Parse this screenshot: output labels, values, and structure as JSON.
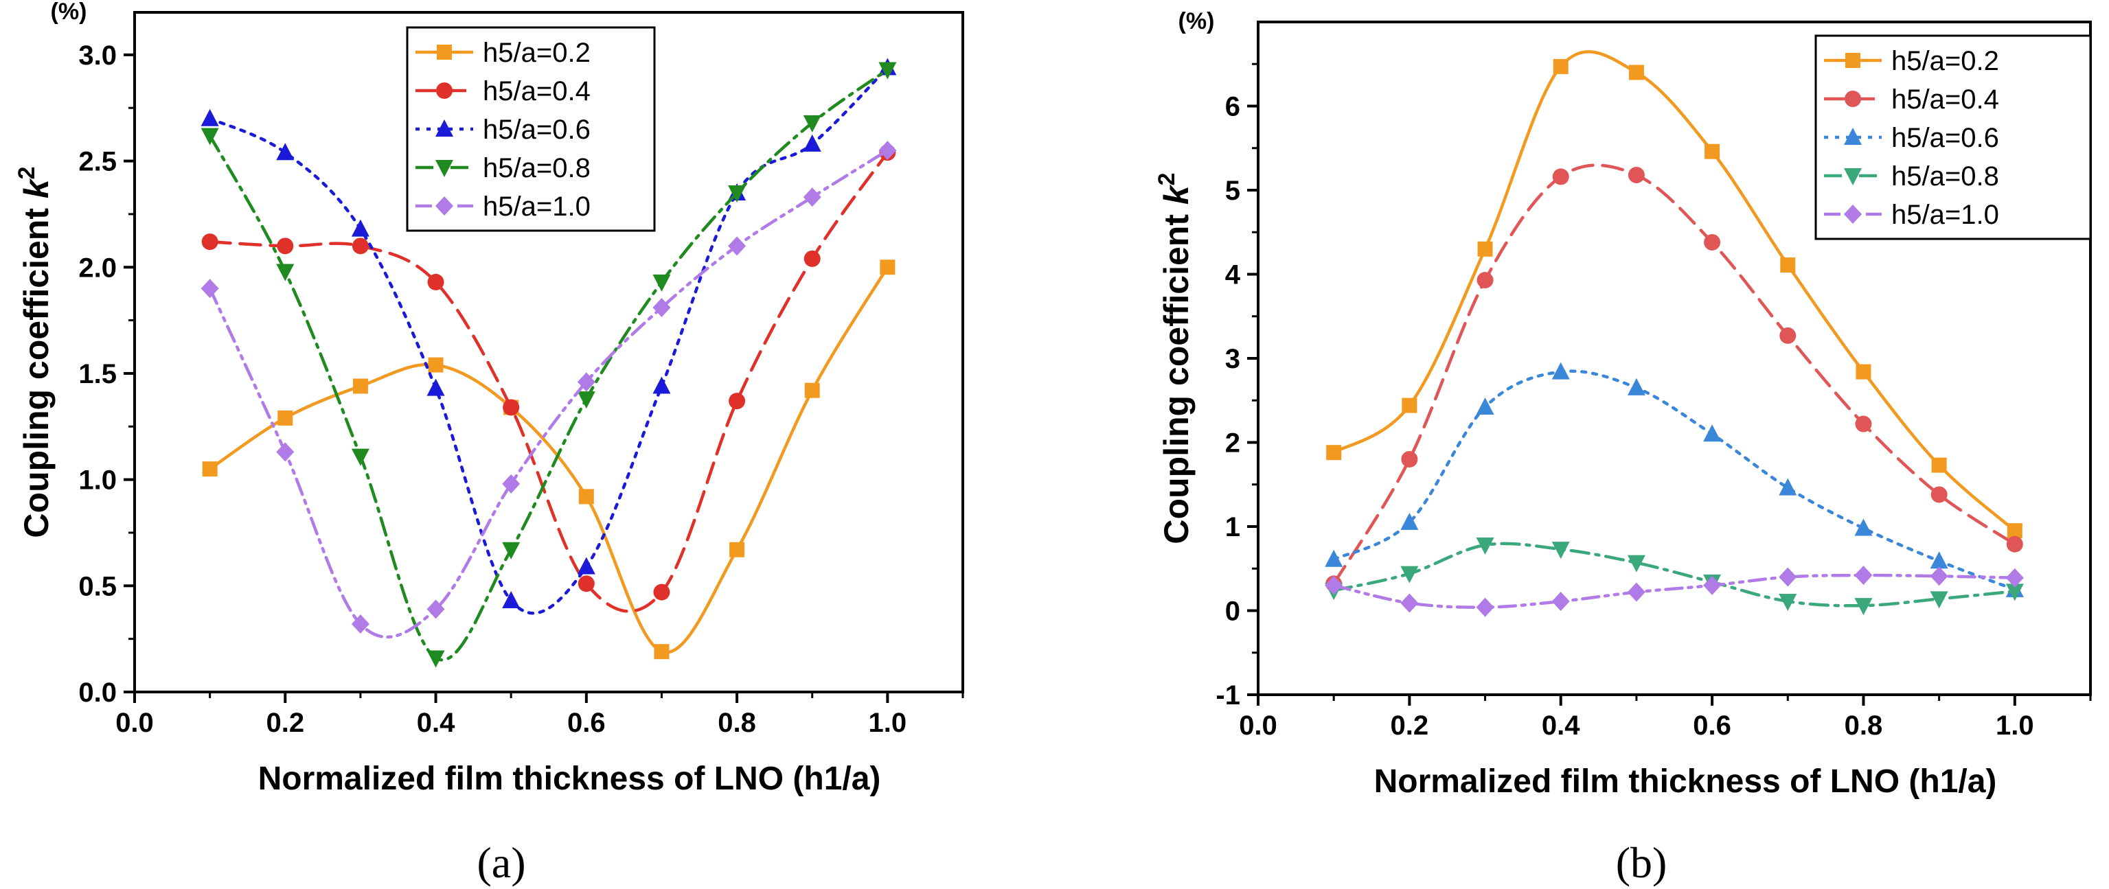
{
  "colors": {
    "h5/a=0.2": "#f29a1f",
    "h5/a=0.4": "#e0302a",
    "h5/a=0.6": "#1a1ad8",
    "h5/a=0.8": "#1f8a1f",
    "h5/a=1.0": "#b07be6",
    "h5/a=0.4 (b)": "#e05555",
    "h5/a=0.6 (b)": "#3a86d8",
    "h5/a=0.8 (b)": "#3aa87a"
  },
  "chart_data": [
    {
      "type": "line",
      "panel_label": "(a)",
      "unit_label": "(%)",
      "xlabel": "Normalized film thickness of LNO (h1/a)",
      "ylabel": "Coupling coefficient ",
      "ylabel_symbol": "k",
      "ylabel_sup": "2",
      "xlim": [
        0.0,
        1.1
      ],
      "ylim": [
        0.0,
        3.2
      ],
      "xticks": [
        "0.0",
        "0.2",
        "0.4",
        "0.6",
        "0.8",
        "1.0"
      ],
      "yticks": [
        "0.0",
        "0.5",
        "1.0",
        "1.5",
        "2.0",
        "2.5",
        "3.0"
      ],
      "legend_position": "top-right",
      "x": [
        0.1,
        0.2,
        0.3,
        0.4,
        0.5,
        0.6,
        0.7,
        0.8,
        0.9,
        1.0
      ],
      "series": [
        {
          "name": "h5/a=0.2",
          "color": "#f29a1f",
          "marker": "square",
          "dash": "solid",
          "values": [
            1.05,
            1.29,
            1.44,
            1.54,
            1.34,
            0.92,
            0.19,
            0.67,
            1.42,
            2.0
          ]
        },
        {
          "name": "h5/a=0.4",
          "color": "#e0302a",
          "marker": "circle",
          "dash": "dash",
          "values": [
            2.12,
            2.1,
            2.1,
            1.93,
            1.34,
            0.51,
            0.47,
            1.37,
            2.04,
            2.54
          ]
        },
        {
          "name": "h5/a=0.6",
          "color": "#1a1ad8",
          "marker": "triangle-up",
          "dash": "dot",
          "values": [
            2.7,
            2.54,
            2.18,
            1.43,
            0.43,
            0.59,
            1.44,
            2.35,
            2.58,
            2.94
          ]
        },
        {
          "name": "h5/a=0.8",
          "color": "#1f8a1f",
          "marker": "triangle-down",
          "dash": "dashdot",
          "values": [
            2.62,
            1.98,
            1.11,
            0.16,
            0.67,
            1.38,
            1.93,
            2.35,
            2.68,
            2.93
          ]
        },
        {
          "name": "h5/a=1.0",
          "color": "#b07be6",
          "marker": "diamond",
          "dash": "dashdotdot",
          "values": [
            1.9,
            1.13,
            0.32,
            0.39,
            0.98,
            1.46,
            1.81,
            2.1,
            2.33,
            2.55
          ]
        }
      ]
    },
    {
      "type": "line",
      "panel_label": "(b)",
      "unit_label": "(%)",
      "xlabel": "Normalized film thickness of LNO (h1/a)",
      "ylabel": "Coupling coefficient ",
      "ylabel_symbol": "k",
      "ylabel_sup": "2",
      "xlim": [
        0.0,
        1.1
      ],
      "ylim": [
        -1,
        7
      ],
      "xticks": [
        "0.0",
        "0.2",
        "0.4",
        "0.6",
        "0.8",
        "1.0"
      ],
      "yticks": [
        "-1",
        "0",
        "1",
        "2",
        "3",
        "4",
        "5",
        "6"
      ],
      "legend_position": "top-right",
      "x": [
        0.1,
        0.2,
        0.3,
        0.4,
        0.5,
        0.6,
        0.7,
        0.8,
        0.9,
        1.0
      ],
      "series": [
        {
          "name": "h5/a=0.2",
          "color": "#f29a1f",
          "marker": "square",
          "dash": "solid",
          "values": [
            1.88,
            2.44,
            4.3,
            6.47,
            6.4,
            5.46,
            4.11,
            2.84,
            1.73,
            0.95
          ]
        },
        {
          "name": "h5/a=0.4",
          "color": "#e05555",
          "marker": "circle",
          "dash": "dash",
          "values": [
            0.32,
            1.8,
            3.93,
            5.16,
            5.18,
            4.38,
            3.27,
            2.22,
            1.38,
            0.79
          ]
        },
        {
          "name": "h5/a=0.6",
          "color": "#3a86d8",
          "marker": "triangle-up",
          "dash": "dot",
          "values": [
            0.61,
            1.05,
            2.42,
            2.84,
            2.65,
            2.1,
            1.46,
            0.98,
            0.59,
            0.25
          ]
        },
        {
          "name": "h5/a=0.8",
          "color": "#3aa87a",
          "marker": "triangle-down",
          "dash": "dashdot",
          "values": [
            0.24,
            0.44,
            0.78,
            0.73,
            0.57,
            0.34,
            0.11,
            0.06,
            0.14,
            0.23
          ]
        },
        {
          "name": "h5/a=1.0",
          "color": "#b07be6",
          "marker": "diamond",
          "dash": "dashdotdot",
          "values": [
            0.3,
            0.09,
            0.04,
            0.11,
            0.22,
            0.3,
            0.4,
            0.42,
            0.41,
            0.39
          ]
        }
      ]
    }
  ]
}
